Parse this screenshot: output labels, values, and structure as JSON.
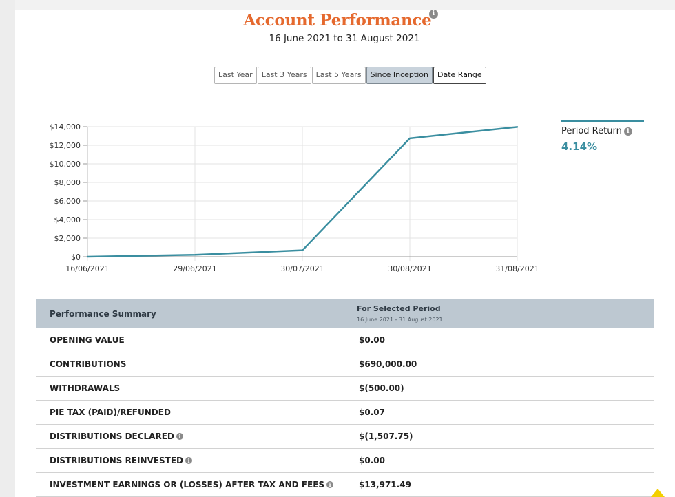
{
  "header": {
    "title": "Account Performance",
    "subtitle": "16 June 2021 to 31 August 2021"
  },
  "range_buttons": [
    {
      "label": "Last Year",
      "active": false
    },
    {
      "label": "Last 3 Years",
      "active": false
    },
    {
      "label": "Last 5 Years",
      "active": false
    },
    {
      "label": "Since Inception",
      "active": true
    },
    {
      "label": "Date Range",
      "active": false
    }
  ],
  "legend": {
    "label": "Period Return",
    "value": "4.14%"
  },
  "chart_data": {
    "type": "line",
    "x": [
      "16/06/2021",
      "29/06/2021",
      "30/07/2021",
      "30/08/2021",
      "31/08/2021"
    ],
    "series": [
      {
        "values": [
          0,
          200,
          690,
          12750,
          13970
        ],
        "color": "#3a8ea0"
      }
    ],
    "ylim": [
      0,
      14000
    ],
    "yticks": [
      0,
      2000,
      4000,
      6000,
      8000,
      10000,
      12000,
      14000
    ],
    "ytick_labels": [
      "$0",
      "$2,000",
      "$4,000",
      "$6,000",
      "$8,000",
      "$10,000",
      "$12,000",
      "$14,000"
    ],
    "grid": true,
    "legend_position": "right"
  },
  "summary": {
    "title": "Performance Summary",
    "period_header": "For Selected Period",
    "period_range": "16 June 2021 - 31 August 2021",
    "rows": [
      {
        "label": "OPENING VALUE",
        "value": "$0.00",
        "info": false
      },
      {
        "label": "CONTRIBUTIONS",
        "value": "$690,000.00",
        "info": false
      },
      {
        "label": "WITHDRAWALS",
        "value": "$(500.00)",
        "info": false
      },
      {
        "label": "PIE TAX (PAID)/REFUNDED",
        "value": "$0.07",
        "info": false
      },
      {
        "label": "DISTRIBUTIONS DECLARED",
        "value": "$(1,507.75)",
        "info": true
      },
      {
        "label": "DISTRIBUTIONS REINVESTED",
        "value": "$0.00",
        "info": true
      },
      {
        "label": "INVESTMENT EARNINGS OR (LOSSES) AFTER TAX AND FEES",
        "value": "$13,971.49",
        "info": true
      }
    ]
  },
  "colors": {
    "title": "#e5692e",
    "line": "#3a8ea0",
    "header_bg": "#bdc8d1"
  }
}
